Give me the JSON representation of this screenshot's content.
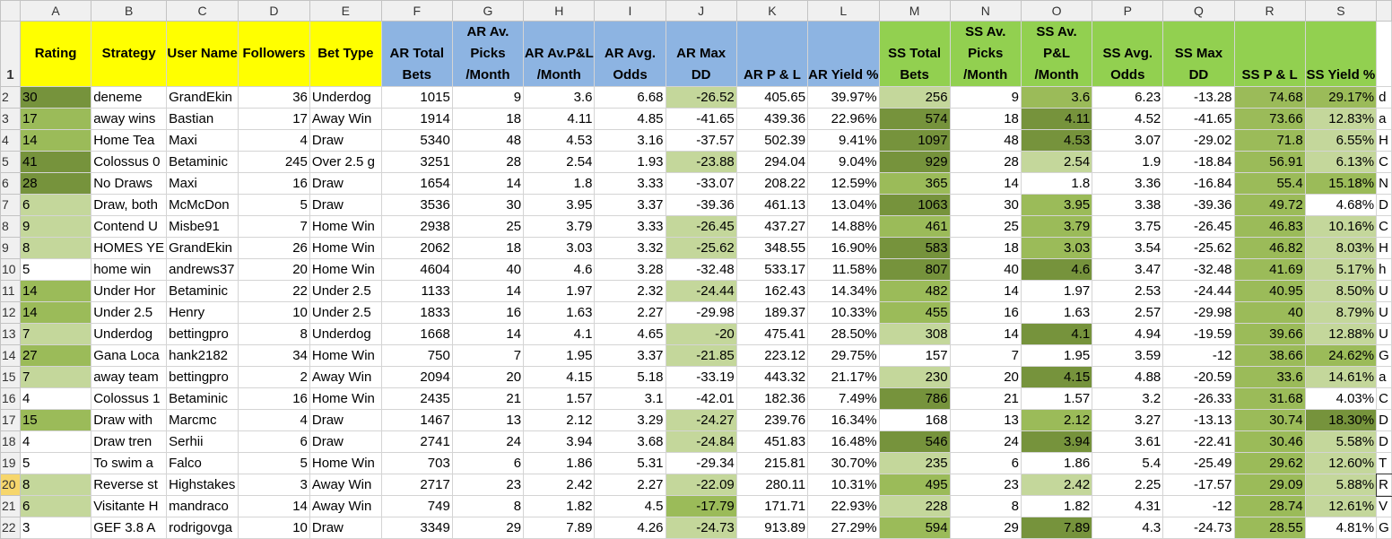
{
  "column_letters": [
    "A",
    "B",
    "C",
    "D",
    "E",
    "F",
    "G",
    "H",
    "I",
    "J",
    "K",
    "L",
    "M",
    "N",
    "O",
    "P",
    "Q",
    "R",
    "S"
  ],
  "header_row_number": "1",
  "headers": [
    {
      "text": "Rating",
      "style": "yellow"
    },
    {
      "text": "Strategy",
      "style": "yellow"
    },
    {
      "text": "User Name",
      "style": "yellow"
    },
    {
      "text": "Followers",
      "style": "yellow"
    },
    {
      "text": "Bet Type",
      "style": "yellow"
    },
    {
      "text": "AR Total Bets",
      "style": "blue"
    },
    {
      "text": "AR Av. Picks /Month",
      "style": "blue"
    },
    {
      "text": "AR Av.P&L /Month",
      "style": "blue"
    },
    {
      "text": "AR Avg. Odds",
      "style": "blue"
    },
    {
      "text": "AR Max DD",
      "style": "blue"
    },
    {
      "text": "AR P & L",
      "style": "blue"
    },
    {
      "text": "AR Yield %",
      "style": "blue"
    },
    {
      "text": "SS Total Bets",
      "style": "green"
    },
    {
      "text": "SS Av. Picks /Month",
      "style": "green"
    },
    {
      "text": "SS Av. P&L /Month",
      "style": "green"
    },
    {
      "text": "SS Avg. Odds",
      "style": "green"
    },
    {
      "text": "SS Max DD",
      "style": "green"
    },
    {
      "text": "SS P & L",
      "style": "green"
    },
    {
      "text": "SS Yield %",
      "style": "green"
    }
  ],
  "rows": [
    {
      "n": "2",
      "cells": [
        "30",
        "deneme",
        "GrandEkin",
        "36",
        "Underdog",
        "1015",
        "9",
        "3.6",
        "6.68",
        "-26.52",
        "405.65",
        "39.97%",
        "256",
        "9",
        "3.6",
        "6.23",
        "-13.28",
        "74.68",
        "29.17%"
      ],
      "fills": {
        "0": "cD",
        "9": "cL",
        "12": "cL",
        "14": "cM",
        "17": "cM",
        "18": "cM"
      },
      "overflow": "d"
    },
    {
      "n": "3",
      "cells": [
        "17",
        "away wins",
        "Bastian",
        "17",
        "Away Win",
        "1914",
        "18",
        "4.11",
        "4.85",
        "-41.65",
        "439.36",
        "22.96%",
        "574",
        "18",
        "4.11",
        "4.52",
        "-41.65",
        "73.66",
        "12.83%"
      ],
      "fills": {
        "0": "cM",
        "12": "cD",
        "14": "cD",
        "17": "cM",
        "18": "cL"
      },
      "overflow": "a"
    },
    {
      "n": "4",
      "cells": [
        "14",
        "Home Tea",
        "Maxi",
        "4",
        "Draw",
        "5340",
        "48",
        "4.53",
        "3.16",
        "-37.57",
        "502.39",
        "9.41%",
        "1097",
        "48",
        "4.53",
        "3.07",
        "-29.02",
        "71.8",
        "6.55%"
      ],
      "fills": {
        "0": "cM",
        "12": "cD",
        "14": "cD",
        "17": "cM",
        "18": "cL"
      },
      "overflow": "H"
    },
    {
      "n": "5",
      "cells": [
        "41",
        "Colossus 0",
        "Betaminic",
        "245",
        "Over 2.5 g",
        "3251",
        "28",
        "2.54",
        "1.93",
        "-23.88",
        "294.04",
        "9.04%",
        "929",
        "28",
        "2.54",
        "1.9",
        "-18.84",
        "56.91",
        "6.13%"
      ],
      "fills": {
        "0": "cD",
        "9": "cL",
        "12": "cD",
        "14": "cL",
        "17": "cM",
        "18": "cL"
      },
      "overflow": "C"
    },
    {
      "n": "6",
      "cells": [
        "28",
        "No Draws",
        "Maxi",
        "16",
        "Draw",
        "1654",
        "14",
        "1.8",
        "3.33",
        "-33.07",
        "208.22",
        "12.59%",
        "365",
        "14",
        "1.8",
        "3.36",
        "-16.84",
        "55.4",
        "15.18%"
      ],
      "fills": {
        "0": "cD",
        "12": "cM",
        "17": "cM",
        "18": "cM"
      },
      "overflow": "N"
    },
    {
      "n": "7",
      "cells": [
        "6",
        "Draw, both",
        "McMcDon",
        "5",
        "Draw",
        "3536",
        "30",
        "3.95",
        "3.37",
        "-39.36",
        "461.13",
        "13.04%",
        "1063",
        "30",
        "3.95",
        "3.38",
        "-39.36",
        "49.72",
        "4.68%"
      ],
      "fills": {
        "0": "cL",
        "12": "cD",
        "14": "cM",
        "17": "cM"
      },
      "overflow": "D"
    },
    {
      "n": "8",
      "cells": [
        "9",
        "Contend U",
        "Misbe91",
        "7",
        "Home Win",
        "2938",
        "25",
        "3.79",
        "3.33",
        "-26.45",
        "437.27",
        "14.88%",
        "461",
        "25",
        "3.79",
        "3.75",
        "-26.45",
        "46.83",
        "10.16%"
      ],
      "fills": {
        "0": "cL",
        "9": "cL",
        "12": "cM",
        "14": "cM",
        "17": "cM",
        "18": "cL"
      },
      "overflow": "C"
    },
    {
      "n": "9",
      "cells": [
        "8",
        "HOMES YE",
        "GrandEkin",
        "26",
        "Home Win",
        "2062",
        "18",
        "3.03",
        "3.32",
        "-25.62",
        "348.55",
        "16.90%",
        "583",
        "18",
        "3.03",
        "3.54",
        "-25.62",
        "46.82",
        "8.03%"
      ],
      "fills": {
        "0": "cL",
        "9": "cL",
        "12": "cD",
        "14": "cM",
        "17": "cM",
        "18": "cL"
      },
      "overflow": "H"
    },
    {
      "n": "10",
      "cells": [
        "5",
        "home win",
        "andrews37",
        "20",
        "Home Win",
        "4604",
        "40",
        "4.6",
        "3.28",
        "-32.48",
        "533.17",
        "11.58%",
        "807",
        "40",
        "4.6",
        "3.47",
        "-32.48",
        "41.69",
        "5.17%"
      ],
      "fills": {
        "12": "cD",
        "14": "cD",
        "17": "cM",
        "18": "cL"
      },
      "overflow": "h"
    },
    {
      "n": "11",
      "cells": [
        "14",
        "Under Hor",
        "Betaminic",
        "22",
        "Under 2.5",
        "1133",
        "14",
        "1.97",
        "2.32",
        "-24.44",
        "162.43",
        "14.34%",
        "482",
        "14",
        "1.97",
        "2.53",
        "-24.44",
        "40.95",
        "8.50%"
      ],
      "fills": {
        "0": "cM",
        "9": "cL",
        "12": "cM",
        "17": "cM",
        "18": "cL"
      },
      "overflow": "U"
    },
    {
      "n": "12",
      "cells": [
        "14",
        "Under 2.5",
        "Henry",
        "10",
        "Under 2.5",
        "1833",
        "16",
        "1.63",
        "2.27",
        "-29.98",
        "189.37",
        "10.33%",
        "455",
        "16",
        "1.63",
        "2.57",
        "-29.98",
        "40",
        "8.79%"
      ],
      "fills": {
        "0": "cM",
        "12": "cM",
        "17": "cM",
        "18": "cL"
      },
      "overflow": "U"
    },
    {
      "n": "13",
      "cells": [
        "7",
        "Underdog",
        "bettingpro",
        "8",
        "Underdog",
        "1668",
        "14",
        "4.1",
        "4.65",
        "-20",
        "475.41",
        "28.50%",
        "308",
        "14",
        "4.1",
        "4.94",
        "-19.59",
        "39.66",
        "12.88%"
      ],
      "fills": {
        "0": "cL",
        "9": "cL",
        "12": "cL",
        "14": "cD",
        "17": "cM",
        "18": "cL"
      },
      "overflow": "U"
    },
    {
      "n": "14",
      "cells": [
        "27",
        "Gana Loca",
        "hank2182",
        "34",
        "Home Win",
        "750",
        "7",
        "1.95",
        "3.37",
        "-21.85",
        "223.12",
        "29.75%",
        "157",
        "7",
        "1.95",
        "3.59",
        "-12",
        "38.66",
        "24.62%"
      ],
      "fills": {
        "0": "cM",
        "9": "cL",
        "17": "cM",
        "18": "cM"
      },
      "overflow": "G"
    },
    {
      "n": "15",
      "cells": [
        "7",
        "away team",
        "bettingpro",
        "2",
        "Away Win",
        "2094",
        "20",
        "4.15",
        "5.18",
        "-33.19",
        "443.32",
        "21.17%",
        "230",
        "20",
        "4.15",
        "4.88",
        "-20.59",
        "33.6",
        "14.61%"
      ],
      "fills": {
        "0": "cL",
        "12": "cL",
        "14": "cD",
        "17": "cM",
        "18": "cL"
      },
      "overflow": "a"
    },
    {
      "n": "16",
      "cells": [
        "4",
        "Colossus 1",
        "Betaminic",
        "16",
        "Home Win",
        "2435",
        "21",
        "1.57",
        "3.1",
        "-42.01",
        "182.36",
        "7.49%",
        "786",
        "21",
        "1.57",
        "3.2",
        "-26.33",
        "31.68",
        "4.03%"
      ],
      "fills": {
        "12": "cD",
        "17": "cM"
      },
      "overflow": "C"
    },
    {
      "n": "17",
      "cells": [
        "15",
        "Draw with",
        "Marcmc",
        "4",
        "Draw",
        "1467",
        "13",
        "2.12",
        "3.29",
        "-24.27",
        "239.76",
        "16.34%",
        "168",
        "13",
        "2.12",
        "3.27",
        "-13.13",
        "30.74",
        "18.30%"
      ],
      "fills": {
        "0": "cM",
        "9": "cL",
        "14": "cM",
        "17": "cM",
        "18": "cD"
      },
      "overflow": "D"
    },
    {
      "n": "18",
      "cells": [
        "4",
        "Draw tren",
        "Serhii",
        "6",
        "Draw",
        "2741",
        "24",
        "3.94",
        "3.68",
        "-24.84",
        "451.83",
        "16.48%",
        "546",
        "24",
        "3.94",
        "3.61",
        "-22.41",
        "30.46",
        "5.58%"
      ],
      "fills": {
        "9": "cL",
        "12": "cD",
        "14": "cD",
        "17": "cM",
        "18": "cL"
      },
      "overflow": "D"
    },
    {
      "n": "19",
      "cells": [
        "5",
        "To swim a",
        "Falco",
        "5",
        "Home Win",
        "703",
        "6",
        "1.86",
        "5.31",
        "-29.34",
        "215.81",
        "30.70%",
        "235",
        "6",
        "1.86",
        "5.4",
        "-25.49",
        "29.62",
        "12.60%"
      ],
      "fills": {
        "12": "cL",
        "17": "cM",
        "18": "cL"
      },
      "overflow": "T"
    },
    {
      "n": "20",
      "cells": [
        "8",
        "Reverse st",
        "Highstakes",
        "3",
        "Away Win",
        "2717",
        "23",
        "2.42",
        "2.27",
        "-22.09",
        "280.11",
        "10.31%",
        "495",
        "23",
        "2.42",
        "2.25",
        "-17.57",
        "29.09",
        "5.88%"
      ],
      "fills": {
        "0": "cL",
        "9": "cL",
        "12": "cM",
        "14": "cL",
        "17": "cM",
        "18": "cL"
      },
      "overflow": "R",
      "selected": true
    },
    {
      "n": "21",
      "cells": [
        "6",
        "Visitante H",
        "mandraco",
        "14",
        "Away Win",
        "749",
        "8",
        "1.82",
        "4.5",
        "-17.79",
        "171.71",
        "22.93%",
        "228",
        "8",
        "1.82",
        "4.31",
        "-12",
        "28.74",
        "12.61%"
      ],
      "fills": {
        "0": "cL",
        "9": "cM",
        "12": "cL",
        "17": "cM",
        "18": "cL"
      },
      "overflow": "V"
    },
    {
      "n": "22",
      "cells": [
        "3",
        "GEF 3.8 A",
        "rodrigovga",
        "10",
        "Draw",
        "3349",
        "29",
        "7.89",
        "4.26",
        "-24.73",
        "913.89",
        "27.29%",
        "594",
        "29",
        "7.89",
        "4.3",
        "-24.73",
        "28.55",
        "4.81%"
      ],
      "fills": {
        "9": "cL",
        "12": "cM",
        "14": "cD",
        "17": "cM"
      },
      "overflow": "G"
    }
  ]
}
